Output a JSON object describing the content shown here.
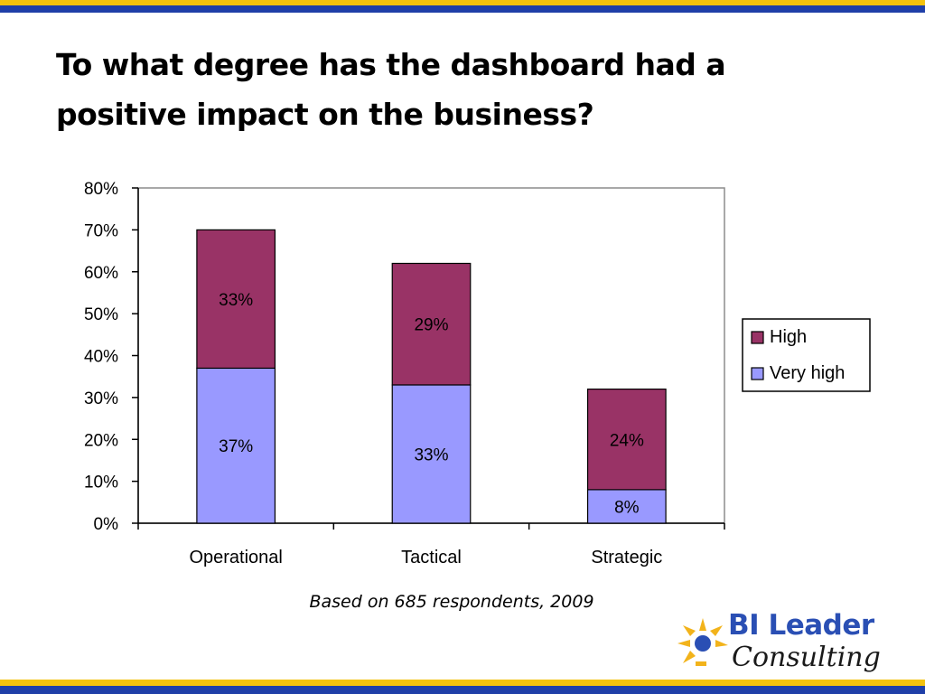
{
  "slide": {
    "title_lines": [
      "To what degree has the dashboard had a",
      "positive impact on the business?"
    ],
    "footnote": "Based on 685 respondents, 2009"
  },
  "logo": {
    "name": "BI Leader",
    "subtitle": "Consulting",
    "icon": "sun-burst-icon"
  },
  "colors": {
    "band_yellow": "#f4c20d",
    "band_blue": "#1f3fa8",
    "logo_blue": "#2a4fb4",
    "logo_orange": "#f2b31b"
  },
  "chart_data": {
    "type": "bar",
    "stacked": true,
    "categories": [
      "Operational",
      "Tactical",
      "Strategic"
    ],
    "series": [
      {
        "name": "Very high",
        "values": [
          37,
          33,
          8
        ],
        "labels": [
          "37%",
          "33%",
          "8%"
        ],
        "color": "#9999ff"
      },
      {
        "name": "High",
        "values": [
          33,
          29,
          24
        ],
        "labels": [
          "33%",
          "29%",
          "24%"
        ],
        "color": "#993366"
      }
    ],
    "totals": [
      70,
      62,
      32
    ],
    "ylim": [
      0,
      80
    ],
    "yticks": [
      "0%",
      "10%",
      "20%",
      "30%",
      "40%",
      "50%",
      "60%",
      "70%",
      "80%"
    ],
    "ytick_values": [
      0,
      10,
      20,
      30,
      40,
      50,
      60,
      70,
      80
    ],
    "grid": false,
    "legend": {
      "position": "right",
      "order": [
        "High",
        "Very high"
      ]
    },
    "title": "",
    "xlabel": "",
    "ylabel": ""
  }
}
